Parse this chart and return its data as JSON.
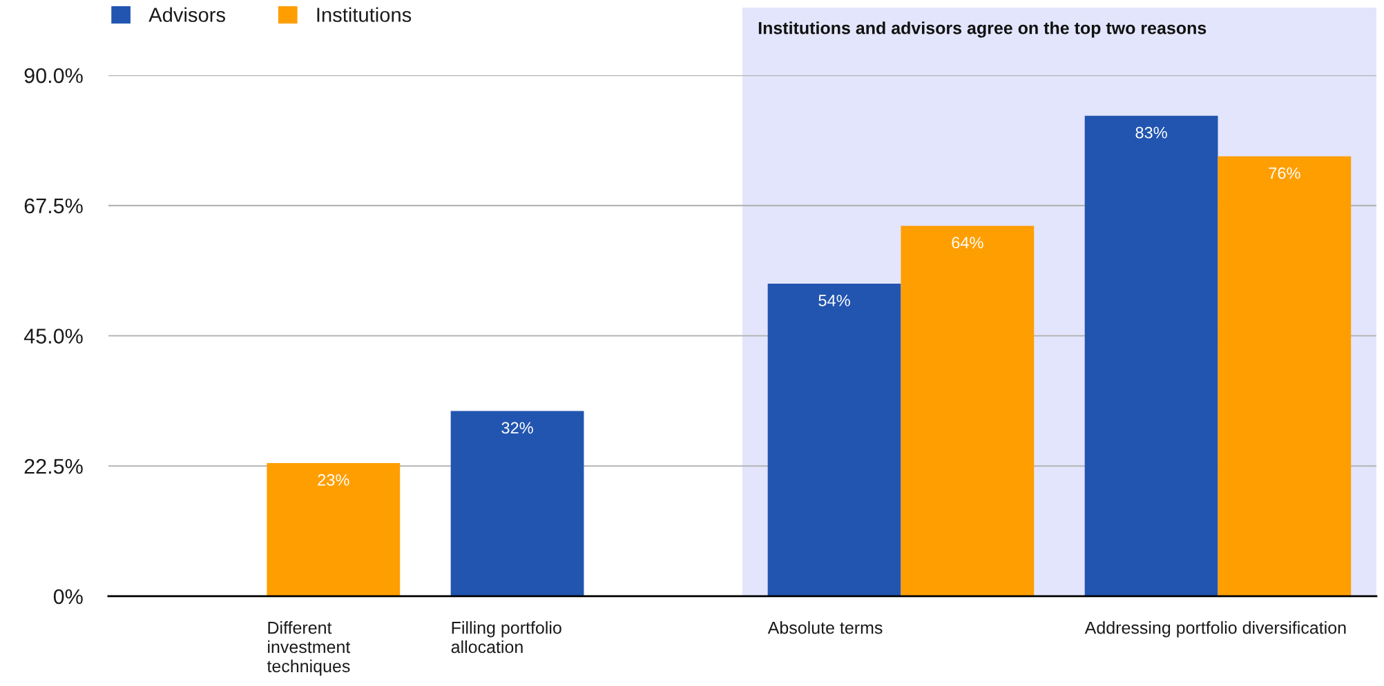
{
  "chart_data": {
    "type": "bar",
    "categories": [
      "Different investment techniques",
      "Filling portfolio allocation",
      "Absolute terms",
      "Addressing portfolio diversification"
    ],
    "series": [
      {
        "name": "Advisors",
        "color": "#2255b0",
        "values": [
          null,
          32,
          54,
          83
        ],
        "value_labels": [
          null,
          "32%",
          "54%",
          "83%"
        ]
      },
      {
        "name": "Institutions",
        "color": "#ff9e00",
        "values": [
          23,
          null,
          64,
          76
        ],
        "value_labels": [
          "23%",
          null,
          "64%",
          "76%"
        ]
      }
    ],
    "ylim": [
      0,
      90
    ],
    "yticks": [
      {
        "value": 0,
        "label": "0%"
      },
      {
        "value": 22.5,
        "label": "22.5%"
      },
      {
        "value": 45,
        "label": "45.0%"
      },
      {
        "value": 67.5,
        "label": "67.5%"
      },
      {
        "value": 90,
        "label": "90.0%"
      }
    ],
    "grid": "y",
    "legend": "top left",
    "bands": [
      {
        "axis": "x",
        "from": "Absolute terms",
        "to": "Addressing portfolio diversification",
        "label": "Institutions and advisors agree on the top two reasons",
        "color": "#e3e5fc"
      }
    ]
  }
}
